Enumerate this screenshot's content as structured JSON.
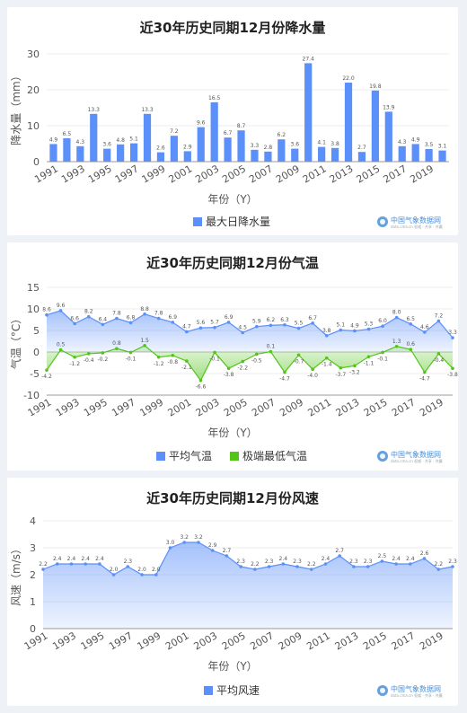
{
  "chart_data": [
    {
      "type": "bar",
      "title": "近30年历史同期12月份降水量",
      "xlabel": "年份（Y）",
      "ylabel": "降水量（mm）",
      "ylim": [
        0,
        30
      ],
      "yticks": [
        0,
        10,
        20,
        30
      ],
      "x": [
        1991,
        1992,
        1993,
        1994,
        1995,
        1996,
        1997,
        1998,
        1999,
        2000,
        2001,
        2002,
        2003,
        2004,
        2005,
        2006,
        2007,
        2008,
        2009,
        2010,
        2011,
        2012,
        2013,
        2014,
        2015,
        2016,
        2017,
        2018,
        2019,
        2020
      ],
      "xtick_labels": [
        "1991",
        "1993",
        "1995",
        "1997",
        "1999",
        "2001",
        "2003",
        "2005",
        "2007",
        "2009",
        "2011",
        "2013",
        "2015",
        "2017",
        "2019"
      ],
      "series": [
        {
          "name": "最大日降水量",
          "color": "#5b8ff9",
          "values": [
            4.9,
            6.5,
            4.3,
            13.3,
            3.6,
            4.8,
            5.1,
            13.3,
            2.6,
            7.2,
            2.9,
            9.6,
            16.5,
            6.7,
            8.7,
            3.3,
            2.8,
            6.2,
            3.6,
            27.4,
            4.1,
            3.8,
            22.0,
            2.7,
            19.8,
            13.9,
            4.3,
            4.9,
            3.5,
            3.1
          ]
        }
      ],
      "legend": "bottom",
      "source": {
        "name": "中国气象数据网",
        "sub": "data.cma.cn 权威 · 共享 · 共赢"
      }
    },
    {
      "type": "area",
      "title": "近30年历史同期12月份气温",
      "xlabel": "年份（Y）",
      "ylabel": "气温（°C）",
      "ylim": [
        -10,
        15
      ],
      "yticks": [
        -10,
        -5,
        0,
        5,
        10,
        15
      ],
      "x": [
        1991,
        1992,
        1993,
        1994,
        1995,
        1996,
        1997,
        1998,
        1999,
        2000,
        2001,
        2002,
        2003,
        2004,
        2005,
        2006,
        2007,
        2008,
        2009,
        2010,
        2011,
        2012,
        2013,
        2014,
        2015,
        2016,
        2017,
        2018,
        2019,
        2020
      ],
      "xtick_labels": [
        "1991",
        "1993",
        "1995",
        "1997",
        "1999",
        "2001",
        "2003",
        "2005",
        "2007",
        "2009",
        "2011",
        "2013",
        "2015",
        "2017",
        "2019"
      ],
      "series": [
        {
          "name": "平均气温",
          "color": "#5b8ff9",
          "values": [
            8.6,
            9.6,
            6.6,
            8.2,
            6.4,
            7.8,
            6.8,
            8.8,
            7.8,
            6.9,
            4.7,
            5.6,
            5.7,
            6.9,
            4.5,
            5.9,
            6.2,
            6.3,
            5.5,
            6.7,
            3.8,
            5.1,
            4.9,
            5.3,
            6.0,
            8.0,
            6.5,
            4.6,
            7.2,
            3.3
          ]
        },
        {
          "name": "极端最低气温",
          "color": "#52c41a",
          "values": [
            -4.2,
            0.5,
            -1.2,
            -0.4,
            -0.2,
            0.8,
            -0.1,
            1.5,
            -1.2,
            -0.8,
            -2.1,
            -6.6,
            -0.1,
            -3.8,
            -2.2,
            -0.5,
            0.1,
            -4.7,
            -0.7,
            -4.0,
            -1.4,
            -3.7,
            -3.2,
            -1.1,
            -0.1,
            1.3,
            0.6,
            -4.7,
            -0.4,
            -3.8
          ]
        }
      ],
      "legend": "bottom",
      "source": {
        "name": "中国气象数据网",
        "sub": "data.cma.cn 权威 · 共享 · 共赢"
      }
    },
    {
      "type": "area",
      "title": "近30年历史同期12月份风速",
      "xlabel": "年份（Y）",
      "ylabel": "风速（m/s）",
      "ylim": [
        0,
        4
      ],
      "yticks": [
        0,
        1,
        2,
        3,
        4
      ],
      "x": [
        1991,
        1992,
        1993,
        1994,
        1995,
        1996,
        1997,
        1998,
        1999,
        2000,
        2001,
        2002,
        2003,
        2004,
        2005,
        2006,
        2007,
        2008,
        2009,
        2010,
        2011,
        2012,
        2013,
        2014,
        2015,
        2016,
        2017,
        2018,
        2019,
        2020
      ],
      "xtick_labels": [
        "1991",
        "1993",
        "1995",
        "1997",
        "1999",
        "2001",
        "2003",
        "2005",
        "2007",
        "2009",
        "2011",
        "2013",
        "2015",
        "2017",
        "2019"
      ],
      "series": [
        {
          "name": "平均风速",
          "color": "#5b8ff9",
          "values": [
            2.2,
            2.4,
            2.4,
            2.4,
            2.4,
            2.0,
            2.3,
            2.0,
            2.0,
            3.0,
            3.2,
            3.2,
            2.9,
            2.7,
            2.3,
            2.2,
            2.3,
            2.4,
            2.3,
            2.2,
            2.4,
            2.7,
            2.3,
            2.3,
            2.5,
            2.4,
            2.4,
            2.6,
            2.2,
            2.3
          ]
        }
      ],
      "legend": "bottom",
      "source": {
        "name": "中国气象数据网",
        "sub": "data.cma.cn 权威 · 共享 · 共赢"
      }
    }
  ]
}
